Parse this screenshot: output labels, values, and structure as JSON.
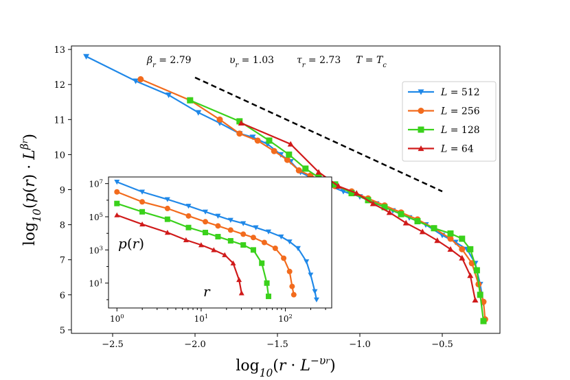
{
  "chart_data": [
    {
      "id": "main",
      "type": "line",
      "title": "",
      "xlabel": "log10(r · L^−υr)",
      "ylabel": "log10(p(r) · L^βr)",
      "xlim": [
        -2.75,
        -0.15
      ],
      "ylim": [
        4.9,
        13.1
      ],
      "xticks": [
        -2.5,
        -2.0,
        -1.5,
        -1.0,
        -0.5
      ],
      "xtick_labels": [
        "−2.5",
        "−2.0",
        "−1.5",
        "−1.0",
        "−0.5"
      ],
      "yticks": [
        5,
        6,
        7,
        8,
        9,
        10,
        11,
        12,
        13
      ],
      "ytick_labels": [
        "5",
        "6",
        "7",
        "8",
        "9",
        "10",
        "11",
        "12",
        "13"
      ],
      "annotations": [
        "βr = 2.79",
        "υr = 1.03",
        "τr = 2.73",
        "T = Tc"
      ],
      "reference_line": {
        "x": [
          -2.0,
          -0.5
        ],
        "y": [
          12.2,
          8.95
        ],
        "style": "dashed",
        "color": "#000000"
      },
      "legend_position": "upper-right",
      "series": [
        {
          "name": "L = 512",
          "color": "#1f88e8",
          "marker": "triangle-down",
          "x": [
            -2.66,
            -2.36,
            -2.16,
            -1.98,
            -1.85,
            -1.73,
            -1.65,
            -1.56,
            -1.48,
            -1.42,
            -1.36,
            -1.3,
            -1.25,
            -1.18,
            -1.1,
            -1.0,
            -0.9,
            -0.8,
            -0.7,
            -0.6,
            -0.5,
            -0.42,
            -0.35,
            -0.3,
            -0.27,
            -0.25
          ],
          "y": [
            12.8,
            12.1,
            11.7,
            11.2,
            10.9,
            10.6,
            10.5,
            10.3,
            10.0,
            9.8,
            9.5,
            9.35,
            9.25,
            9.1,
            8.95,
            8.8,
            8.6,
            8.4,
            8.2,
            8.0,
            7.7,
            7.5,
            7.3,
            6.9,
            6.3,
            5.75
          ]
        },
        {
          "name": "L = 256",
          "color": "#f26b1d",
          "marker": "circle",
          "x": [
            -2.33,
            -2.03,
            -1.85,
            -1.73,
            -1.62,
            -1.52,
            -1.44,
            -1.37,
            -1.3,
            -1.23,
            -1.15,
            -1.05,
            -0.95,
            -0.85,
            -0.75,
            -0.65,
            -0.55,
            -0.45,
            -0.38,
            -0.32,
            -0.28,
            -0.25,
            -0.24
          ],
          "y": [
            12.15,
            11.55,
            11.0,
            10.6,
            10.4,
            10.1,
            9.85,
            9.55,
            9.4,
            9.25,
            9.1,
            8.95,
            8.75,
            8.55,
            8.35,
            8.15,
            7.9,
            7.6,
            7.3,
            6.9,
            6.3,
            5.8,
            5.3
          ]
        },
        {
          "name": "L = 128",
          "color": "#3ad11b",
          "marker": "square",
          "x": [
            -2.03,
            -1.73,
            -1.55,
            -1.43,
            -1.33,
            -1.25,
            -1.15,
            -1.05,
            -0.95,
            -0.85,
            -0.75,
            -0.65,
            -0.55,
            -0.45,
            -0.38,
            -0.33,
            -0.29,
            -0.27,
            -0.25
          ],
          "y": [
            11.55,
            10.95,
            10.4,
            10.0,
            9.6,
            9.35,
            9.15,
            8.9,
            8.7,
            8.5,
            8.3,
            8.1,
            7.9,
            7.75,
            7.6,
            7.3,
            6.7,
            6.0,
            5.25
          ]
        },
        {
          "name": "L = 64",
          "color": "#d01a1a",
          "marker": "triangle-up",
          "x": [
            -1.72,
            -1.42,
            -1.25,
            -1.13,
            -1.02,
            -0.92,
            -0.82,
            -0.72,
            -0.62,
            -0.53,
            -0.45,
            -0.38,
            -0.33,
            -0.3
          ],
          "y": [
            10.9,
            10.3,
            9.5,
            9.1,
            8.9,
            8.6,
            8.35,
            8.05,
            7.8,
            7.55,
            7.3,
            7.05,
            6.55,
            5.85
          ]
        }
      ]
    },
    {
      "id": "inset",
      "type": "line",
      "scale": "log-log",
      "xlabel": "r",
      "ylabel": "p(r)",
      "xlim_log10": [
        -0.1,
        2.55
      ],
      "ylim_log10": [
        -0.5,
        7.4
      ],
      "xticks_log10": [
        0,
        1,
        2
      ],
      "xtick_labels": [
        "10^0",
        "10^1",
        "10^2"
      ],
      "yticks_log10": [
        1,
        3,
        5,
        7
      ],
      "ytick_labels": [
        "10^1",
        "10^3",
        "10^5",
        "10^7"
      ],
      "series": [
        {
          "name": "L = 512",
          "color": "#1f88e8",
          "marker": "triangle-down",
          "log10_r": [
            0,
            0.3,
            0.6,
            0.85,
            1.05,
            1.2,
            1.35,
            1.5,
            1.65,
            1.8,
            1.95,
            2.05,
            2.15,
            2.25,
            2.3,
            2.35,
            2.37
          ],
          "log10_p": [
            7.1,
            6.5,
            6.05,
            5.65,
            5.3,
            5.05,
            4.8,
            4.6,
            4.35,
            4.1,
            3.8,
            3.5,
            3.1,
            2.3,
            1.5,
            0.5,
            0.0
          ]
        },
        {
          "name": "L = 256",
          "color": "#f26b1d",
          "marker": "circle",
          "log10_r": [
            0,
            0.3,
            0.6,
            0.85,
            1.05,
            1.2,
            1.35,
            1.5,
            1.62,
            1.75,
            1.88,
            1.98,
            2.05,
            2.08,
            2.1
          ],
          "log10_p": [
            6.5,
            5.9,
            5.5,
            5.05,
            4.7,
            4.45,
            4.2,
            3.95,
            3.75,
            3.45,
            3.1,
            2.5,
            1.7,
            0.8,
            0.3
          ]
        },
        {
          "name": "L = 128",
          "color": "#3ad11b",
          "marker": "square",
          "log10_r": [
            0,
            0.3,
            0.6,
            0.85,
            1.05,
            1.2,
            1.35,
            1.5,
            1.62,
            1.72,
            1.78,
            1.8
          ],
          "log10_p": [
            5.8,
            5.3,
            4.85,
            4.35,
            4.05,
            3.8,
            3.55,
            3.3,
            3.0,
            2.2,
            1.0,
            0.2
          ]
        },
        {
          "name": "L = 64",
          "color": "#d01a1a",
          "marker": "triangle-up",
          "log10_r": [
            0,
            0.3,
            0.6,
            0.82,
            1.0,
            1.15,
            1.28,
            1.38,
            1.45,
            1.48
          ],
          "log10_p": [
            5.1,
            4.55,
            4.05,
            3.6,
            3.3,
            3.0,
            2.7,
            2.2,
            1.2,
            0.4
          ]
        }
      ]
    }
  ]
}
